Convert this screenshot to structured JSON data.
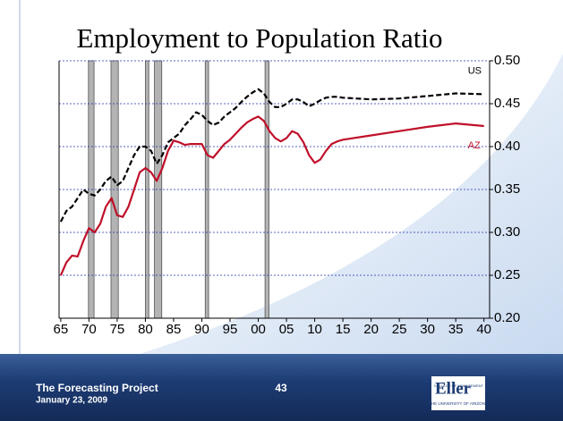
{
  "chart_data": {
    "type": "line",
    "title": "Employment to Population Ratio",
    "x": [
      1965,
      1966,
      1967,
      1968,
      1969,
      1970,
      1971,
      1972,
      1973,
      1974,
      1975,
      1976,
      1977,
      1978,
      1979,
      1980,
      1981,
      1982,
      1983,
      1984,
      1985,
      1986,
      1987,
      1988,
      1989,
      1990,
      1991,
      1992,
      1993,
      1994,
      1995,
      1996,
      1997,
      1998,
      1999,
      2000,
      2001,
      2002,
      2003,
      2004,
      2005,
      2006,
      2007,
      2008,
      2009,
      2010,
      2011,
      2012,
      2013,
      2014,
      2015,
      2020,
      2025,
      2030,
      2035,
      2040
    ],
    "series": [
      {
        "name": "US",
        "color": "#000000",
        "dash": true,
        "values": [
          0.3125,
          0.325,
          0.33,
          0.34,
          0.35,
          0.345,
          0.343,
          0.35,
          0.36,
          0.365,
          0.355,
          0.36,
          0.375,
          0.39,
          0.4,
          0.4,
          0.395,
          0.38,
          0.39,
          0.405,
          0.41,
          0.415,
          0.425,
          0.432,
          0.44,
          0.437,
          0.43,
          0.425,
          0.428,
          0.435,
          0.44,
          0.445,
          0.452,
          0.458,
          0.463,
          0.467,
          0.462,
          0.452,
          0.446,
          0.446,
          0.45,
          0.455,
          0.455,
          0.452,
          0.447,
          0.45,
          0.454,
          0.457,
          0.458,
          0.458,
          0.457,
          0.455,
          0.456,
          0.459,
          0.462,
          0.461
        ]
      },
      {
        "name": "AZ",
        "color": "#c0102a",
        "dash": false,
        "values": [
          0.25,
          0.265,
          0.273,
          0.272,
          0.29,
          0.305,
          0.3,
          0.31,
          0.33,
          0.34,
          0.32,
          0.318,
          0.33,
          0.35,
          0.37,
          0.375,
          0.37,
          0.36,
          0.375,
          0.395,
          0.407,
          0.405,
          0.402,
          0.403,
          0.403,
          0.403,
          0.39,
          0.387,
          0.395,
          0.403,
          0.408,
          0.415,
          0.422,
          0.428,
          0.432,
          0.435,
          0.43,
          0.418,
          0.41,
          0.406,
          0.41,
          0.418,
          0.415,
          0.405,
          0.39,
          0.381,
          0.385,
          0.395,
          0.403,
          0.406,
          0.408,
          0.413,
          0.418,
          0.423,
          0.427,
          0.424
        ]
      }
    ],
    "shaded_periods": [
      [
        1969.9,
        1970.9
      ],
      [
        1973.9,
        1975.2
      ],
      [
        1980.0,
        1980.6
      ],
      [
        1981.6,
        1982.9
      ],
      [
        1990.6,
        1991.2
      ],
      [
        2001.2,
        2001.9
      ]
    ],
    "xlim": [
      1964.7,
      2041
    ],
    "xticks": [
      {
        "value": 1965,
        "label": "65"
      },
      {
        "value": 1970,
        "label": "70"
      },
      {
        "value": 1975,
        "label": "75"
      },
      {
        "value": 1980,
        "label": "80"
      },
      {
        "value": 1985,
        "label": "85"
      },
      {
        "value": 1990,
        "label": "90"
      },
      {
        "value": 1995,
        "label": "95"
      },
      {
        "value": 2000,
        "label": "00"
      },
      {
        "value": 2005,
        "label": "05"
      },
      {
        "value": 2010,
        "label": "10"
      },
      {
        "value": 2015,
        "label": "15"
      },
      {
        "value": 2020,
        "label": "20"
      },
      {
        "value": 2025,
        "label": "25"
      },
      {
        "value": 2030,
        "label": "30"
      },
      {
        "value": 2035,
        "label": "35"
      },
      {
        "value": 2040,
        "label": "40"
      }
    ],
    "ylim": [
      0.2,
      0.5
    ],
    "yticks": [
      {
        "value": 0.2,
        "label": "0.20"
      },
      0.25,
      {
        "value": 0.3,
        "label": "0.30"
      },
      0.35,
      {
        "value": 0.4,
        "label": "0.40"
      },
      0.45,
      {
        "value": 0.5,
        "label": "0.50"
      }
    ],
    "grid": true
  },
  "footer": {
    "project": "The Forecasting Project",
    "date": "January 23, 2009",
    "page": "43",
    "logo": {
      "name": "Eller",
      "college": "COLLEGE OF MANAGEMENT",
      "university": "THE UNIVERSITY OF ARIZONA"
    }
  }
}
